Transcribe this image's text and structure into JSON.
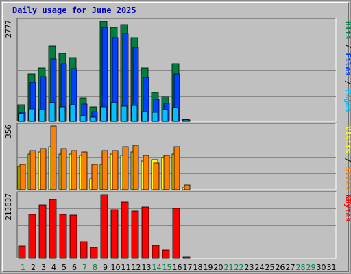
{
  "title": "Daily usage for June 2025",
  "colors": {
    "background": "#c0c0c0",
    "plot": "#c0c0c0",
    "grid": "#888888",
    "hits": "#008040",
    "files": "#0040ff",
    "pages": "#00c0ff",
    "visits": "#ffff00",
    "sites": "#ff8000",
    "kbytes": "#ff0000",
    "title": "#0000c0"
  },
  "chart_data": [
    {
      "type": "bar",
      "panel": "hits-files-pages",
      "scale_label": "2777",
      "ylim": [
        0,
        2777
      ],
      "grid": true,
      "legend": [
        "Pages",
        "Files",
        "Hits"
      ],
      "categories": [
        "1",
        "2",
        "3",
        "4",
        "5",
        "6",
        "7",
        "8",
        "9",
        "10",
        "11",
        "12",
        "13",
        "14",
        "15",
        "16",
        "17",
        "18",
        "19",
        "20",
        "21",
        "22",
        "23",
        "24",
        "25",
        "26",
        "27",
        "28",
        "29",
        "30",
        "31"
      ],
      "series": [
        {
          "name": "Hits",
          "values": [
            450,
            1310,
            1490,
            2090,
            1880,
            1760,
            640,
            390,
            2777,
            2600,
            2690,
            2320,
            1480,
            790,
            690,
            1600,
            60,
            0,
            0,
            0,
            0,
            0,
            0,
            0,
            0,
            0,
            0,
            0,
            0,
            0,
            0
          ]
        },
        {
          "name": "Files",
          "values": [
            250,
            1090,
            1240,
            1740,
            1600,
            1470,
            470,
            270,
            2610,
            2320,
            2440,
            2060,
            1210,
            600,
            500,
            1320,
            30,
            0,
            0,
            0,
            0,
            0,
            0,
            0,
            0,
            0,
            0,
            0,
            0,
            0,
            0
          ]
        },
        {
          "name": "Pages",
          "values": [
            210,
            340,
            320,
            510,
            390,
            460,
            160,
            110,
            390,
            510,
            420,
            430,
            270,
            250,
            330,
            380,
            30,
            0,
            0,
            0,
            0,
            0,
            0,
            0,
            0,
            0,
            0,
            0,
            0,
            0,
            0
          ]
        }
      ]
    },
    {
      "type": "bar",
      "panel": "sites-visits",
      "scale_label": "356",
      "ylim": [
        0,
        356
      ],
      "grid": true,
      "legend": [
        "Sites",
        "Visits"
      ],
      "categories": [
        "1",
        "2",
        "3",
        "4",
        "5",
        "6",
        "7",
        "8",
        "9",
        "10",
        "11",
        "12",
        "13",
        "14",
        "15",
        "16",
        "17",
        "18",
        "19",
        "20",
        "21",
        "22",
        "23",
        "24",
        "25",
        "26",
        "27",
        "28",
        "29",
        "30",
        "31"
      ],
      "series": [
        {
          "name": "Visits",
          "values": [
            130,
            200,
            210,
            240,
            200,
            200,
            190,
            60,
            140,
            200,
            190,
            210,
            160,
            170,
            180,
            200,
            10,
            0,
            0,
            0,
            0,
            0,
            0,
            0,
            0,
            0,
            0,
            0,
            0,
            0,
            0
          ]
        },
        {
          "name": "Sites",
          "values": [
            140,
            220,
            230,
            356,
            230,
            220,
            210,
            140,
            220,
            220,
            240,
            250,
            190,
            150,
            190,
            240,
            25,
            0,
            0,
            0,
            0,
            0,
            0,
            0,
            0,
            0,
            0,
            0,
            0,
            0,
            0
          ]
        }
      ]
    },
    {
      "type": "bar",
      "panel": "kbytes",
      "scale_label": "213637",
      "ylim": [
        0,
        213637
      ],
      "grid": true,
      "legend": [
        "KBytes"
      ],
      "categories": [
        "1",
        "2",
        "3",
        "4",
        "5",
        "6",
        "7",
        "8",
        "9",
        "10",
        "11",
        "12",
        "13",
        "14",
        "15",
        "16",
        "17",
        "18",
        "19",
        "20",
        "21",
        "22",
        "23",
        "24",
        "25",
        "26",
        "27",
        "28",
        "29",
        "30",
        "31"
      ],
      "series": [
        {
          "name": "KBytes",
          "values": [
            41000,
            148000,
            180000,
            197000,
            148000,
            145000,
            56000,
            37000,
            213637,
            163000,
            188000,
            159000,
            172000,
            43000,
            28000,
            168000,
            5000,
            0,
            0,
            0,
            0,
            0,
            0,
            0,
            0,
            0,
            0,
            0,
            0,
            0,
            0
          ]
        }
      ]
    }
  ],
  "xaxis": {
    "days": [
      "1",
      "2",
      "3",
      "4",
      "5",
      "6",
      "7",
      "8",
      "9",
      "10",
      "11",
      "12",
      "13",
      "14",
      "15",
      "16",
      "17",
      "18",
      "19",
      "20",
      "21",
      "22",
      "23",
      "24",
      "25",
      "26",
      "27",
      "28",
      "29",
      "30",
      "31"
    ],
    "weekend_days": [
      "1",
      "7",
      "8",
      "14",
      "15",
      "21",
      "22",
      "28",
      "29"
    ],
    "weekday_color": "#000000",
    "weekend_color": "#008040"
  }
}
